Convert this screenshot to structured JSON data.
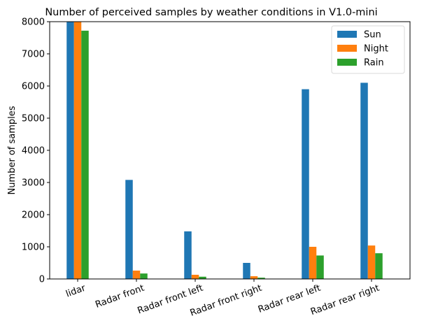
{
  "chart_data": {
    "type": "bar",
    "title": "Number of perceived samples by weather conditions in V1.0-mini",
    "xlabel": "",
    "ylabel": "Number of samples",
    "categories": [
      "lidar",
      "Radar front",
      "Radar front left",
      "Radar front right",
      "Radar rear left",
      "Radar rear right"
    ],
    "series": [
      {
        "name": "Sun",
        "color": "#1f77b4",
        "values": [
          8000,
          3080,
          1480,
          500,
          5900,
          6100
        ]
      },
      {
        "name": "Night",
        "color": "#ff7f0e",
        "values": [
          8000,
          260,
          130,
          85,
          1000,
          1040
        ]
      },
      {
        "name": "Rain",
        "color": "#2ca02c",
        "values": [
          7720,
          170,
          70,
          40,
          730,
          800
        ]
      }
    ],
    "ylim": [
      0,
      8000
    ],
    "yticks": [
      0,
      1000,
      2000,
      3000,
      4000,
      5000,
      6000,
      7000,
      8000
    ],
    "grid": false,
    "legend_position": "top-right"
  }
}
